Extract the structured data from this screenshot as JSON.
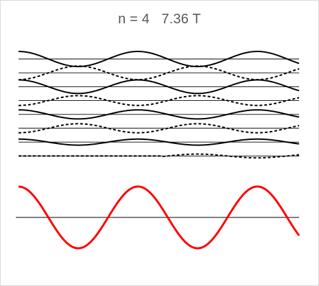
{
  "chart_data": {
    "type": "line",
    "title": "n = 4   7.36 T",
    "grid": false,
    "legend": "none",
    "colors": {
      "component": "#000000",
      "sum": "#ff0000",
      "axis": "#000000"
    },
    "x_range_periods": [
      0,
      2.35
    ],
    "component_waves": [
      {
        "style": "solid",
        "amplitude": 1.0,
        "phase_deg": 90
      },
      {
        "style": "dashed",
        "amplitude": 0.9,
        "phase_deg": -90
      },
      {
        "style": "solid",
        "amplitude": 0.9,
        "phase_deg": 90
      },
      {
        "style": "dashed",
        "amplitude": 0.65,
        "phase_deg": -90
      },
      {
        "style": "solid",
        "amplitude": 0.6,
        "phase_deg": 90
      },
      {
        "style": "dashed",
        "amplitude": 0.6,
        "phase_deg": -90
      },
      {
        "style": "solid",
        "amplitude": 0.4,
        "phase_deg": 90
      },
      {
        "style": "dashed",
        "amplitude": 0.25,
        "phase_deg": -90,
        "starts_at_period": 1.2
      }
    ],
    "resultant_wave": {
      "style": "solid",
      "amplitude": 1.0,
      "phase_deg": 90
    }
  }
}
